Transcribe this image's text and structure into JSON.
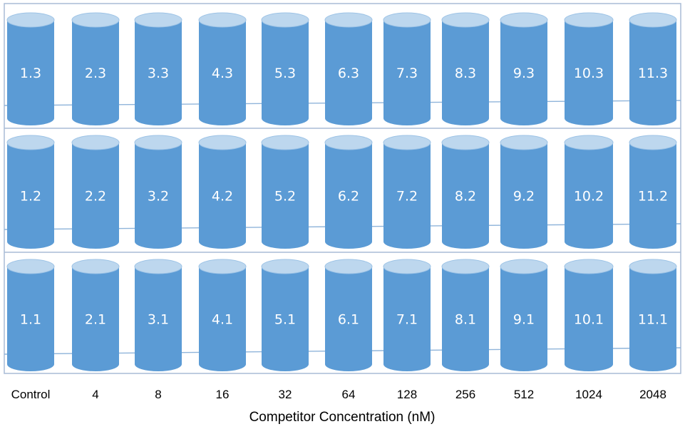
{
  "colors": {
    "tube_body": "#5B9BD5",
    "tube_top": "#BDD7EE",
    "tube_top_edge": "#9DC3E6",
    "shelf_line": "#8FB4DA",
    "frame": "#A9BCD6"
  },
  "columns": [
    "Control",
    "4",
    "8",
    "16",
    "32",
    "64",
    "128",
    "256",
    "512",
    "1024",
    "2048"
  ],
  "rows": [
    {
      "labels": [
        "1.3",
        "2.3",
        "3.3",
        "4.3",
        "5.3",
        "6.3",
        "7.3",
        "8.3",
        "9.3",
        "10.3",
        "11.3"
      ]
    },
    {
      "labels": [
        "1.2",
        "2.2",
        "3.2",
        "4.2",
        "5.2",
        "6.2",
        "7.2",
        "8.2",
        "9.2",
        "10.2",
        "11.2"
      ]
    },
    {
      "labels": [
        "1.1",
        "2.1",
        "3.1",
        "4.1",
        "5.1",
        "6.1",
        "7.1",
        "8.1",
        "9.1",
        "10.1",
        "11.1"
      ]
    }
  ],
  "x_axis_title": "Competitor Concentration (nM)"
}
